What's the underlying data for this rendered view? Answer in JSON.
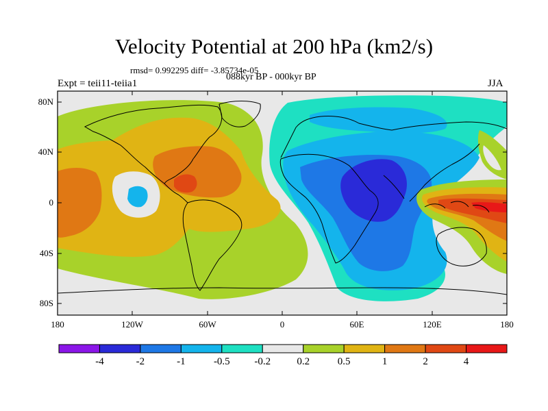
{
  "title": "Velocity Potential at 200 hPa (km2/s)",
  "stats_line": "rmsd= 0.992295 diff= -3.85734e-05",
  "period_line": "088kyr BP - 000kyr BP",
  "experiment_label": "Expt = teii11-teiia1",
  "season_label": "JJA",
  "map": {
    "projection": "cylindrical-equidistant",
    "lon_range": [
      -180,
      180
    ],
    "lat_range": [
      -90,
      90
    ],
    "x_ticks": [
      "180",
      "120W",
      "60W",
      "0",
      "60E",
      "120E",
      "180"
    ],
    "y_ticks": [
      "80N",
      "40N",
      "0",
      "40S",
      "80S"
    ]
  },
  "colorbar": {
    "levels": [
      "-4",
      "-2",
      "-1",
      "-0.5",
      "-0.2",
      "0.2",
      "0.5",
      "1",
      "2",
      "4"
    ],
    "colors": [
      "#8b16e8",
      "#2a2ad8",
      "#1e78e6",
      "#14b4ec",
      "#1ee0c2",
      "#e8e8e8",
      "#a8d22a",
      "#e0b414",
      "#e07814",
      "#e04814",
      "#e81818"
    ]
  }
}
